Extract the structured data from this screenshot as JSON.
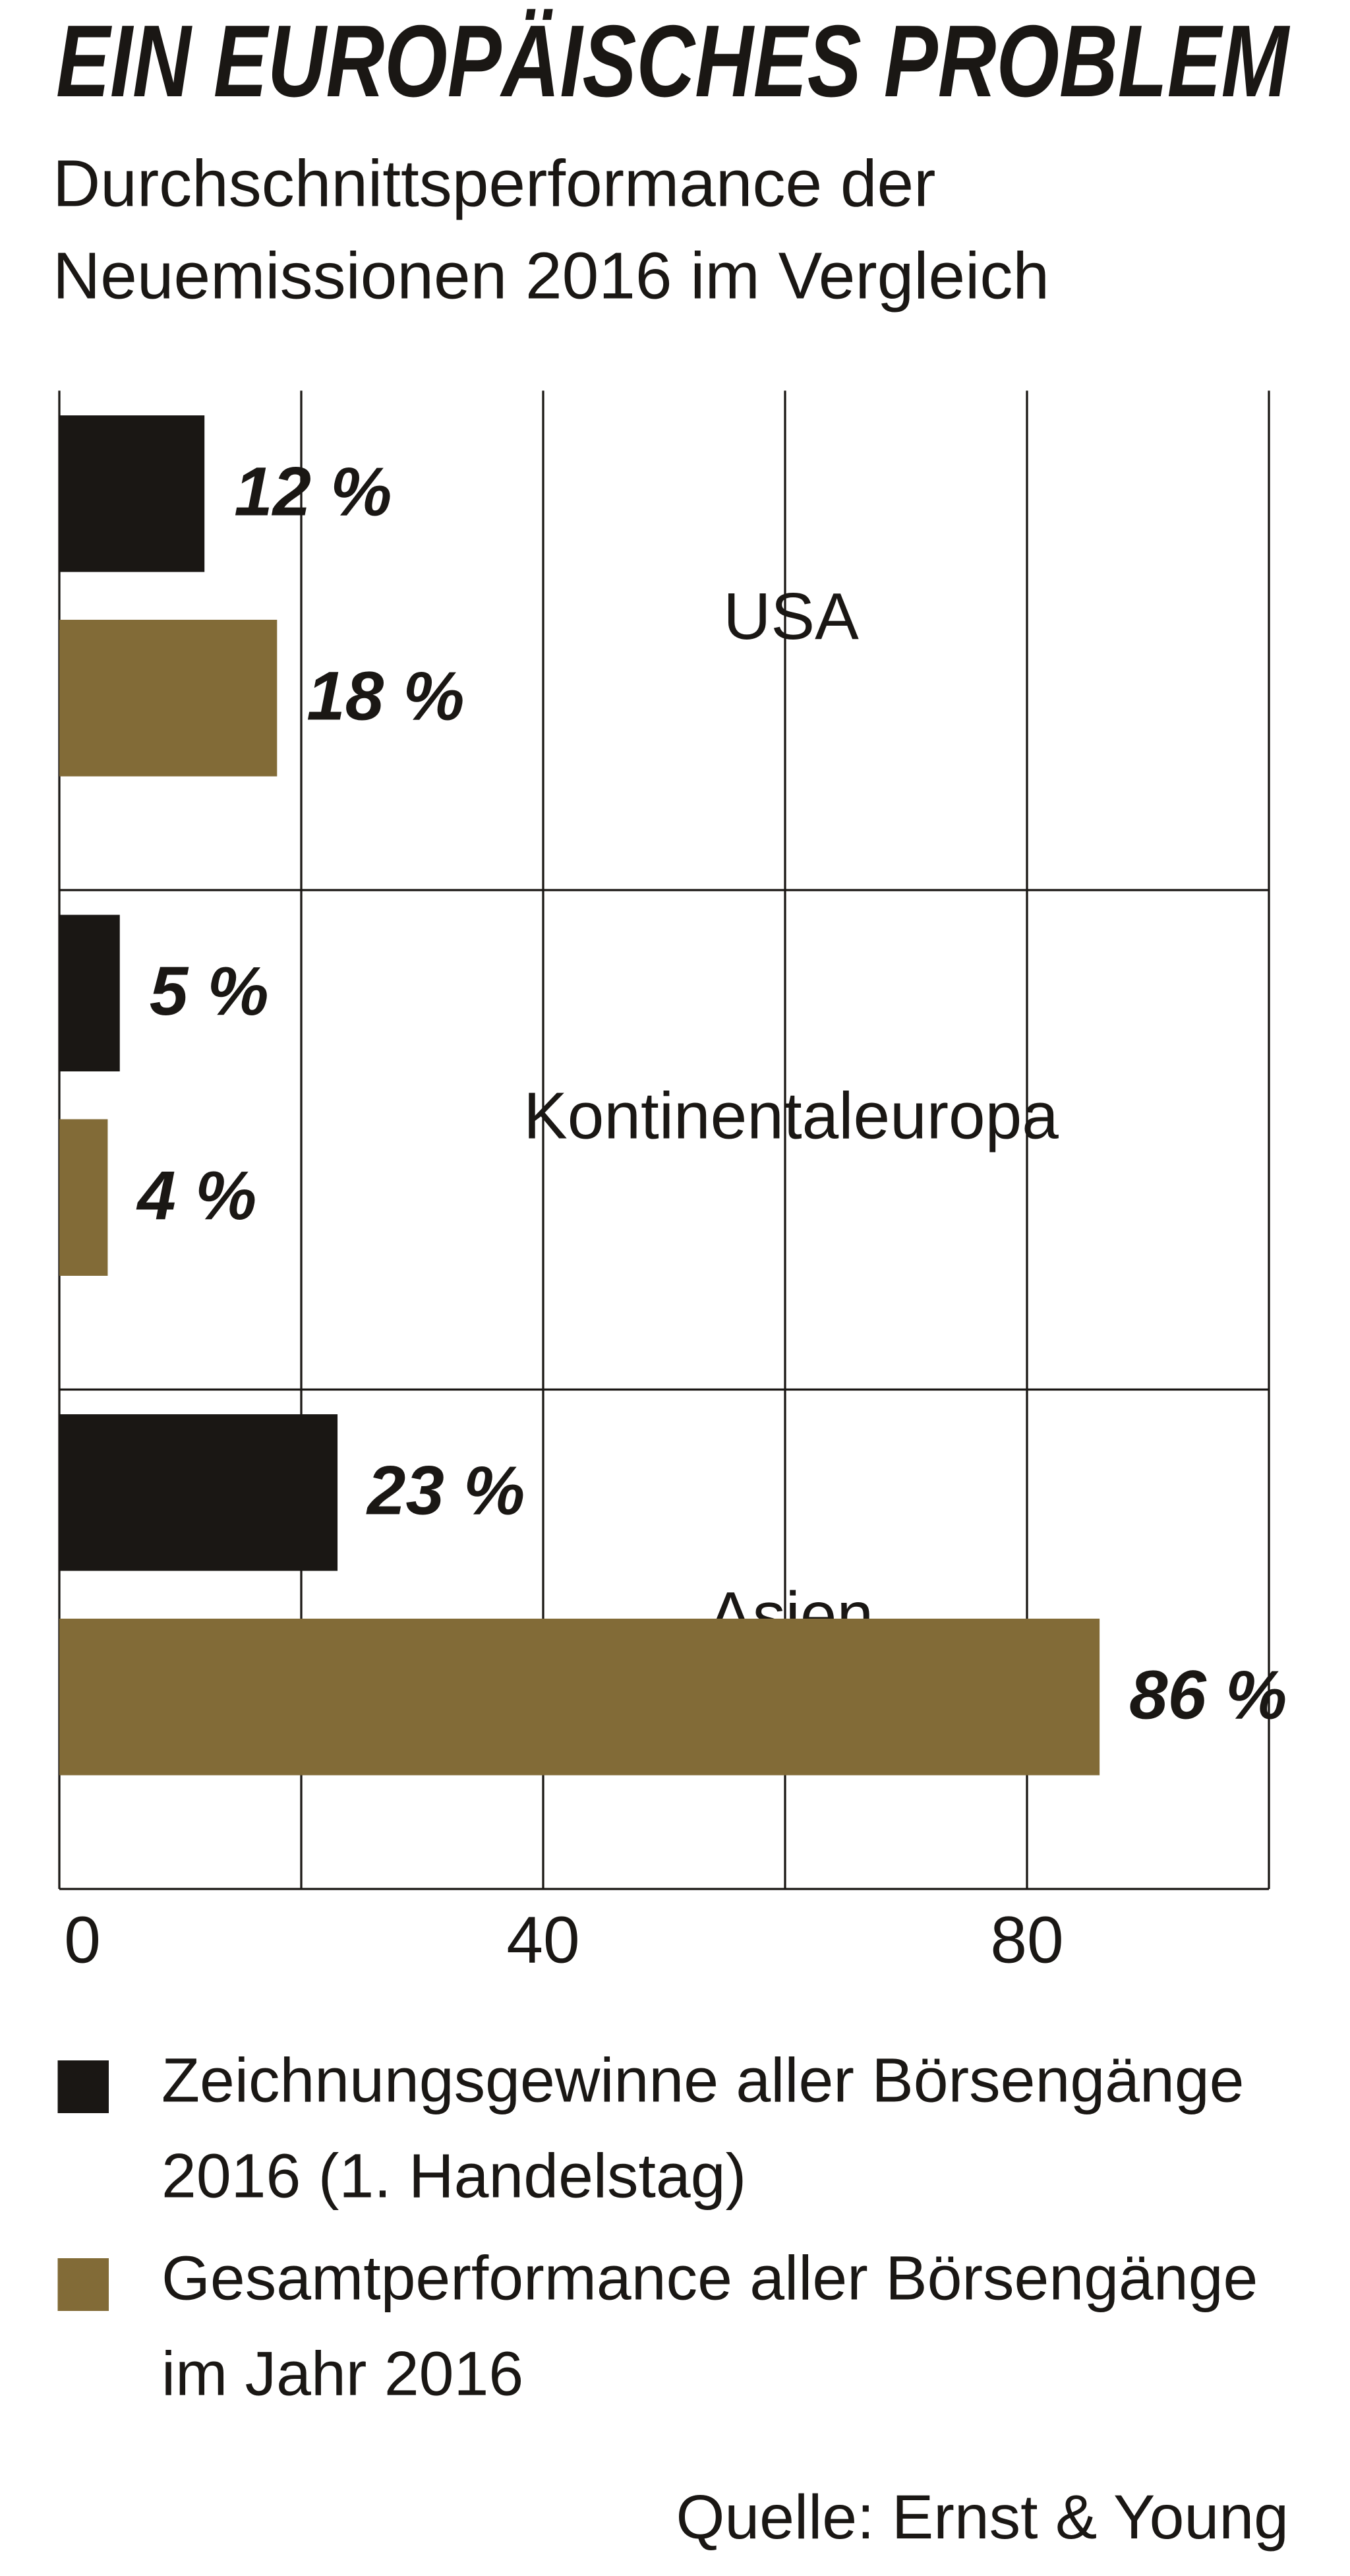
{
  "chart_data": {
    "type": "grouped-hbar",
    "title": "EIN EUROPÄISCHES PROBLEM",
    "subtitle": "Durchschnittsperformance der Neuemissionen 2016 im Vergleich",
    "categories": [
      "USA",
      "Kontinentaleuropa",
      "Asien"
    ],
    "series": [
      {
        "name": "Zeichnungsgewinne aller Börsengänge 2016 (1. Handelstag)",
        "color": "#1a1714",
        "values": [
          12,
          5,
          23
        ],
        "value_labels": [
          "12 %",
          "5 %",
          "23 %"
        ]
      },
      {
        "name": "Gesamtperformance aller Börsengänge im Jahr 2016",
        "color": "#826b37",
        "values": [
          18,
          4,
          86
        ],
        "value_labels": [
          "18 %",
          "4 %",
          "86 %"
        ]
      }
    ],
    "xlim": [
      0,
      100
    ],
    "xticks": [
      0,
      40,
      80
    ],
    "xgrid": [
      0,
      20,
      40,
      60,
      80,
      100
    ],
    "source": "Quelle: Ernst & Young"
  }
}
